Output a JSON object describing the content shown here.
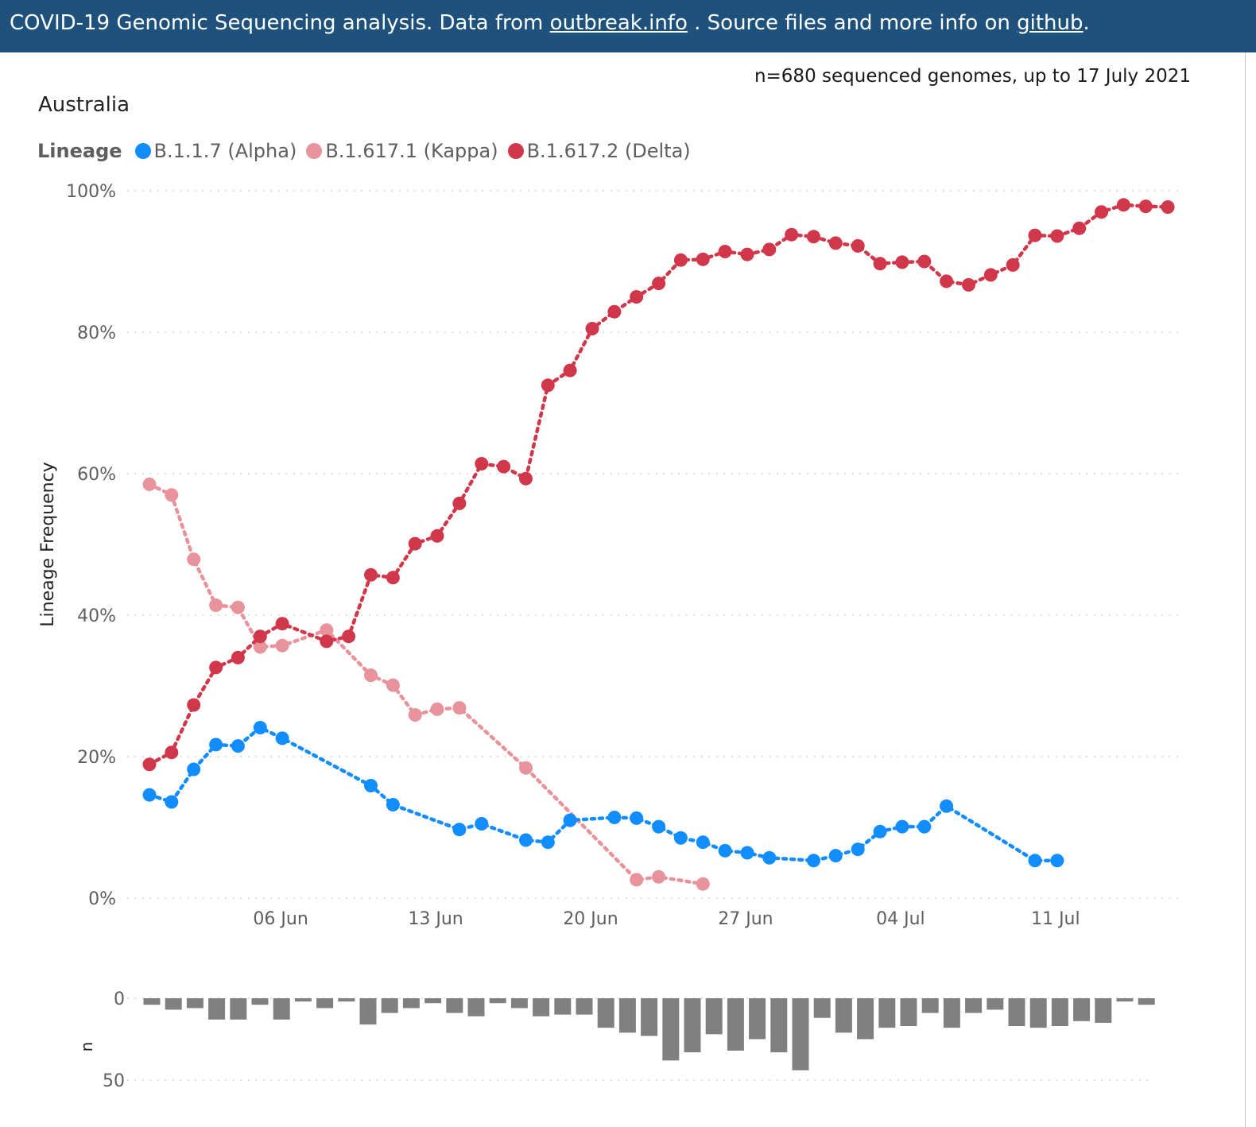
{
  "banner": {
    "text_before": "COVID-19 Genomic Sequencing analysis. Data from ",
    "link1": "outbreak.info",
    "text_middle": " . Source files and more info on ",
    "link2": "github",
    "text_after": "."
  },
  "count_note": "n=680 sequenced genomes, up to 17 July 2021",
  "country": "Australia",
  "legend": {
    "title": "Lineage",
    "items": [
      {
        "label": "B.1.1.7 (Alpha)",
        "color": "#118dff"
      },
      {
        "label": "B.1.617.1 (Kappa)",
        "color": "#e8939b"
      },
      {
        "label": "B.1.617.2 (Delta)",
        "color": "#d1374a"
      }
    ]
  },
  "chart_data": [
    {
      "type": "line",
      "ylabel": "Lineage Frequency",
      "xlabel": "",
      "ylim": [
        0,
        100
      ],
      "y_ticks": [
        "0%",
        "20%",
        "40%",
        "60%",
        "80%",
        "100%"
      ],
      "x_ticks": [
        "06 Jun",
        "13 Jun",
        "20 Jun",
        "27 Jun",
        "04 Jul",
        "11 Jul"
      ],
      "x_start_date": "31 May",
      "grid": true,
      "line_style": "dotted",
      "series": [
        {
          "name": "B.1.1.7 (Alpha)",
          "color": "#118dff",
          "points": [
            [
              0,
              14.6
            ],
            [
              1,
              13.6
            ],
            [
              2,
              18.2
            ],
            [
              3,
              21.7
            ],
            [
              4,
              21.5
            ],
            [
              5,
              24.1
            ],
            [
              6,
              22.6
            ],
            [
              10,
              15.9
            ],
            [
              11,
              13.2
            ],
            [
              14,
              9.7
            ],
            [
              15,
              10.5
            ],
            [
              17,
              8.2
            ],
            [
              18,
              7.9
            ],
            [
              19,
              11.0
            ],
            [
              21,
              11.4
            ],
            [
              22,
              11.3
            ],
            [
              23,
              10.1
            ],
            [
              24,
              8.5
            ],
            [
              25,
              7.9
            ],
            [
              26,
              6.7
            ],
            [
              27,
              6.4
            ],
            [
              28,
              5.7
            ],
            [
              30,
              5.3
            ],
            [
              31,
              6.0
            ],
            [
              32,
              6.9
            ],
            [
              33,
              9.4
            ],
            [
              34,
              10.1
            ],
            [
              35,
              10.1
            ],
            [
              36,
              13.0
            ],
            [
              40,
              5.3
            ],
            [
              41,
              5.3
            ]
          ]
        },
        {
          "name": "B.1.617.1 (Kappa)",
          "color": "#e8939b",
          "points": [
            [
              0,
              58.5
            ],
            [
              1,
              57.0
            ],
            [
              2,
              47.9
            ],
            [
              3,
              41.4
            ],
            [
              4,
              41.1
            ],
            [
              5,
              35.5
            ],
            [
              6,
              35.7
            ],
            [
              8,
              37.9
            ],
            [
              10,
              31.5
            ],
            [
              11,
              30.1
            ],
            [
              12,
              25.9
            ],
            [
              13,
              26.7
            ],
            [
              14,
              26.9
            ],
            [
              17,
              18.4
            ],
            [
              22,
              2.6
            ],
            [
              23,
              3.0
            ],
            [
              25,
              2.0
            ]
          ]
        },
        {
          "name": "B.1.617.2 (Delta)",
          "color": "#d1374a",
          "points": [
            [
              0,
              18.9
            ],
            [
              1,
              20.6
            ],
            [
              2,
              27.3
            ],
            [
              3,
              32.6
            ],
            [
              4,
              34.0
            ],
            [
              5,
              37.0
            ],
            [
              6,
              38.8
            ],
            [
              8,
              36.3
            ],
            [
              9,
              37.0
            ],
            [
              10,
              45.7
            ],
            [
              11,
              45.3
            ],
            [
              12,
              50.1
            ],
            [
              13,
              51.2
            ],
            [
              14,
              55.8
            ],
            [
              15,
              61.4
            ],
            [
              16,
              61.0
            ],
            [
              17,
              59.3
            ],
            [
              18,
              72.5
            ],
            [
              19,
              74.6
            ],
            [
              20,
              80.5
            ],
            [
              21,
              82.9
            ],
            [
              22,
              85.0
            ],
            [
              23,
              86.9
            ],
            [
              24,
              90.2
            ],
            [
              25,
              90.3
            ],
            [
              26,
              91.4
            ],
            [
              27,
              91.0
            ],
            [
              28,
              91.7
            ],
            [
              29,
              93.8
            ],
            [
              30,
              93.5
            ],
            [
              31,
              92.6
            ],
            [
              32,
              92.2
            ],
            [
              33,
              89.7
            ],
            [
              34,
              89.9
            ],
            [
              35,
              90.0
            ],
            [
              36,
              87.2
            ],
            [
              37,
              86.7
            ],
            [
              38,
              88.1
            ],
            [
              39,
              89.5
            ],
            [
              40,
              93.7
            ],
            [
              41,
              93.6
            ],
            [
              42,
              94.7
            ],
            [
              43,
              97.0
            ],
            [
              44,
              98.0
            ],
            [
              45,
              97.8
            ],
            [
              46,
              97.7
            ]
          ]
        }
      ]
    },
    {
      "type": "bar",
      "ylabel": "n",
      "ylim": [
        0,
        50
      ],
      "y_ticks": [
        "0",
        "50"
      ],
      "inverted": true,
      "color": "#808080",
      "values": [
        4,
        7,
        6,
        13,
        13,
        4,
        13,
        2,
        6,
        2,
        16,
        9,
        6,
        3,
        9,
        11,
        3,
        6,
        11,
        10,
        10,
        18,
        21,
        23,
        38,
        33,
        22,
        32,
        25,
        33,
        44,
        12,
        21,
        25,
        18,
        17,
        9,
        18,
        9,
        7,
        17,
        18,
        17,
        14,
        15,
        2,
        4
      ]
    }
  ]
}
